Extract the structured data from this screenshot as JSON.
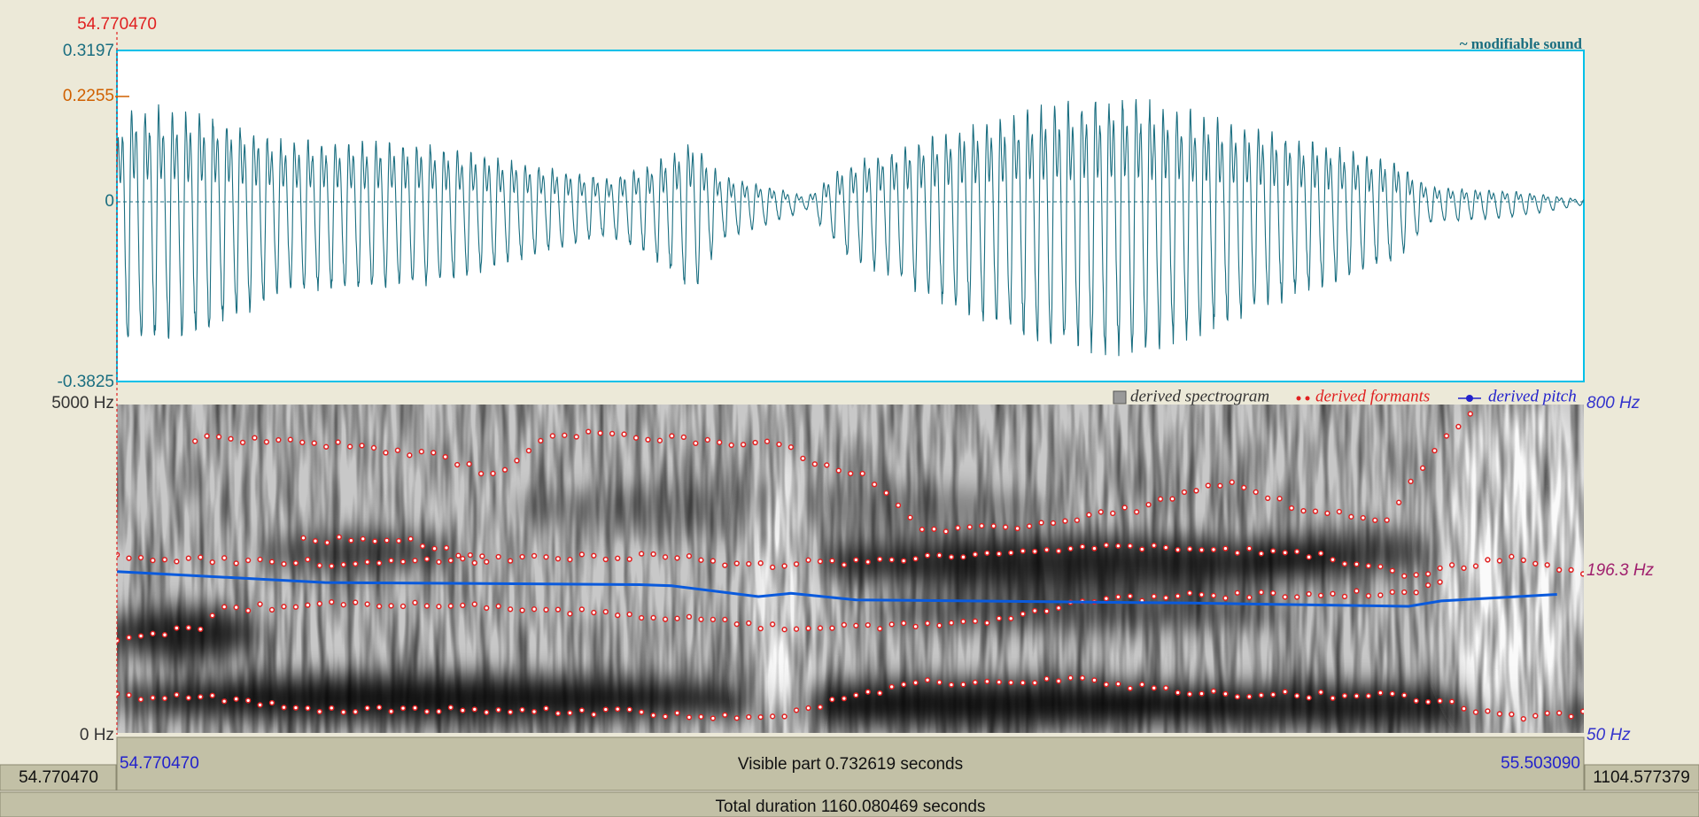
{
  "cursor_time": "54.770470",
  "waveform": {
    "title": "~ modifiable sound",
    "y_max": "0.3197",
    "y_marker": "0.2255",
    "y_zero": "0",
    "y_min": "-0.3825"
  },
  "spectrogram": {
    "freq_max": "5000 Hz",
    "freq_min": "0 Hz",
    "legend": [
      "derived spectrogram",
      "derived formants",
      "derived pitch"
    ],
    "pitch_max": "800 Hz",
    "pitch_value": "196.3 Hz",
    "pitch_min": "50 Hz"
  },
  "time_bar": {
    "start": "54.770470",
    "visible": "Visible part 0.732619 seconds",
    "end": "55.503090",
    "window_start": "54.770470",
    "window_end": "1104.577379",
    "total": "Total duration 1160.080469 seconds"
  }
}
